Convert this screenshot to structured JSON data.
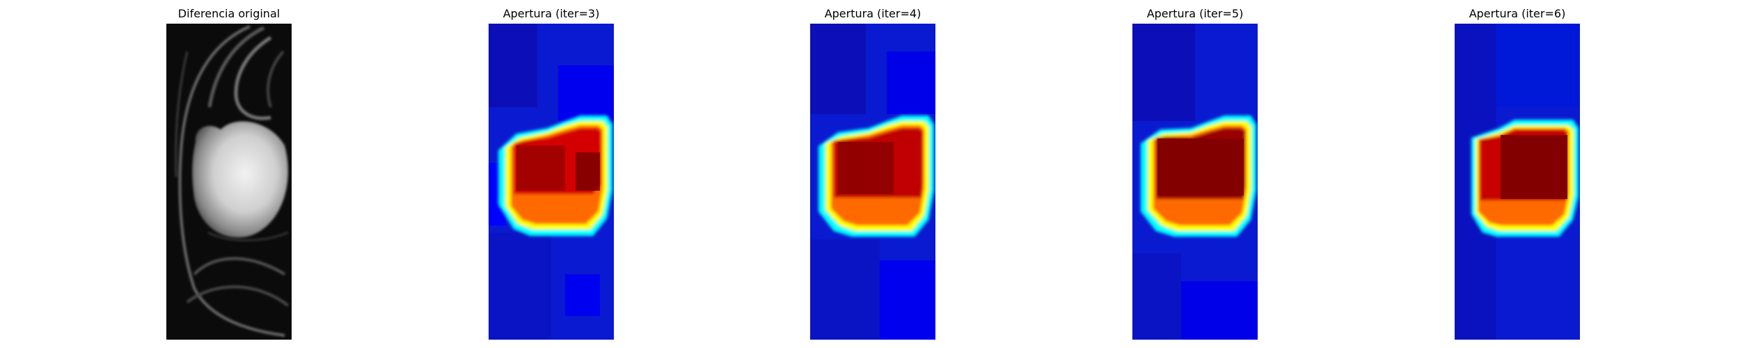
{
  "figure": {
    "panels": [
      {
        "id": "original",
        "title": "Diferencia original",
        "colormap": "gray"
      },
      {
        "id": "iter3",
        "title": "Apertura (iter=3)",
        "colormap": "jet"
      },
      {
        "id": "iter4",
        "title": "Apertura (iter=4)",
        "colormap": "jet"
      },
      {
        "id": "iter5",
        "title": "Apertura (iter=5)",
        "colormap": "jet"
      },
      {
        "id": "iter6",
        "title": "Apertura (iter=6)",
        "colormap": "jet"
      }
    ]
  },
  "colors": {
    "jet_background": "#0a1ad0",
    "jet_dark_blue": "#00008f",
    "jet_light_blue": "#0000ff",
    "jet_cyan": "#00ffff",
    "jet_yellow": "#ffff00",
    "jet_orange": "#ff6a00",
    "jet_red": "#d40000",
    "jet_dark_red": "#800000"
  }
}
